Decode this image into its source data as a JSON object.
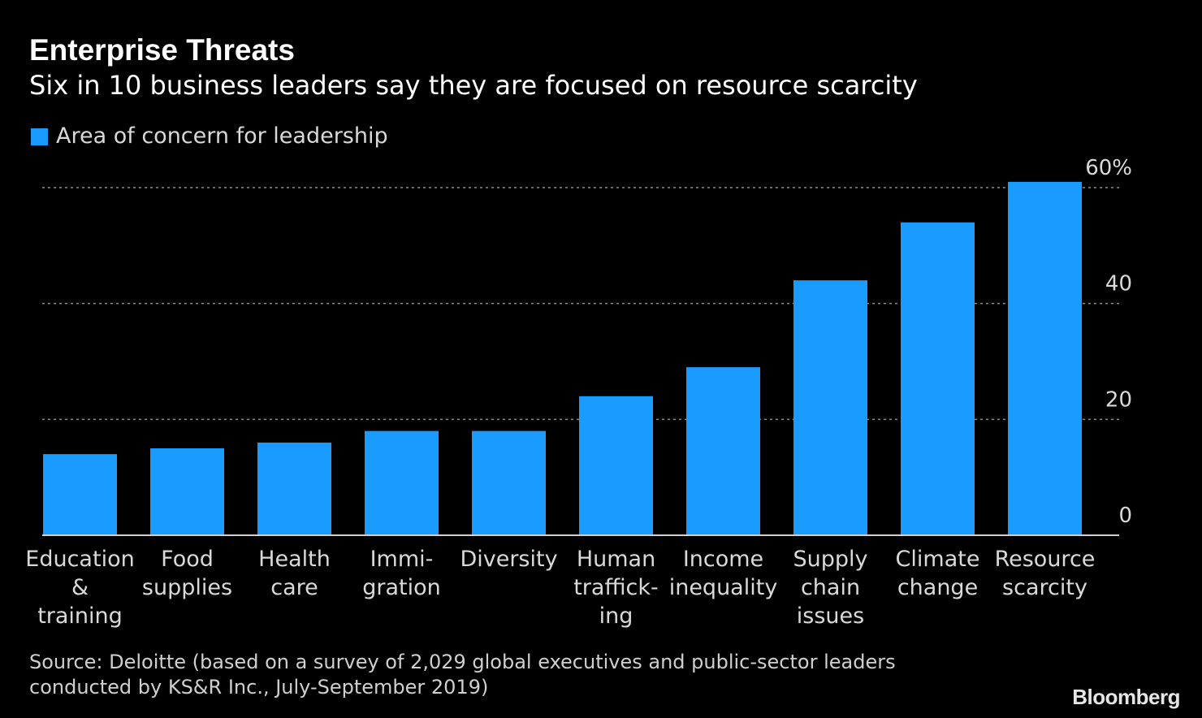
{
  "header": {
    "title": "Enterprise Threats",
    "subtitle": "Six in 10 business leaders say they are focused on resource scarcity"
  },
  "legend": {
    "label": "Area of concern for leadership",
    "color": "#1a9bff"
  },
  "chart_data": {
    "type": "bar",
    "title": "Enterprise Threats",
    "subtitle": "Six in 10 business leaders say they are focused on resource scarcity",
    "xlabel": "",
    "ylabel": "",
    "ylim": [
      0,
      60
    ],
    "yticks": [
      {
        "value": 0,
        "label": "0"
      },
      {
        "value": 20,
        "label": "20"
      },
      {
        "value": 40,
        "label": "40"
      },
      {
        "value": 60,
        "label": "60%"
      }
    ],
    "y_axis_position": "right",
    "grid": true,
    "categories": [
      [
        "Education",
        "&",
        "training"
      ],
      [
        "Food",
        "supplies"
      ],
      [
        "Health",
        "care"
      ],
      [
        "Immi-",
        "gration"
      ],
      [
        "Diversity"
      ],
      [
        "Human",
        "traffick-",
        "ing"
      ],
      [
        "Income",
        "inequality"
      ],
      [
        "Supply",
        "chain",
        "issues"
      ],
      [
        "Climate",
        "change"
      ],
      [
        "Resource",
        "scarcity"
      ]
    ],
    "series": [
      {
        "name": "Area of concern for leadership",
        "color": "#1a9bff",
        "values": [
          14,
          15,
          16,
          18,
          18,
          24,
          29,
          44,
          54,
          61
        ]
      }
    ]
  },
  "footer": {
    "source": "Source: Deloitte (based on a survey of 2,029 global executives and public-sector leaders conducted by KS&R Inc., July-September 2019)",
    "brand": "Bloomberg"
  }
}
